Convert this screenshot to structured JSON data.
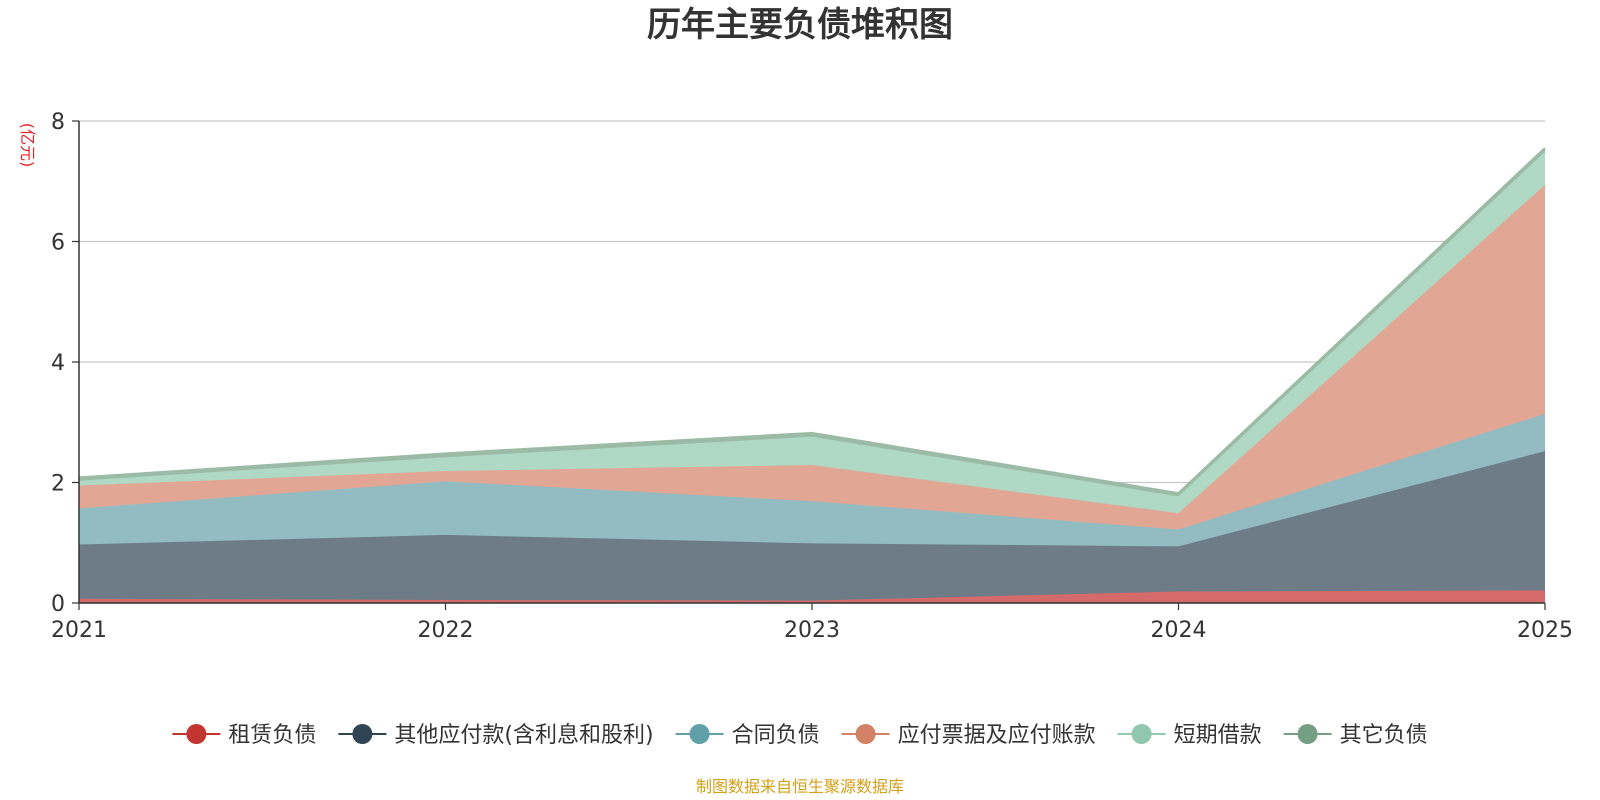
{
  "chart_data": {
    "type": "area",
    "stacked": true,
    "title": "历年主要负债堆积图",
    "unit": "(亿元)",
    "source": "制图数据来自恒生聚源数据库",
    "x": [
      "2021",
      "2022",
      "2023",
      "2024",
      "2025"
    ],
    "ylim": [
      0,
      8
    ],
    "yticks": [
      0,
      2,
      4,
      6,
      8
    ],
    "grid": true,
    "legend_position": "bottom",
    "series": [
      {
        "name": "租赁负债",
        "color": "#c23531",
        "fill": "#d46a6a",
        "values": [
          0.07,
          0.05,
          0.04,
          0.19,
          0.21
        ]
      },
      {
        "name": "其他应付款(含利息和股利)",
        "color": "#2f4554",
        "fill": "#6e7c88",
        "values": [
          0.9,
          1.08,
          0.95,
          0.75,
          2.31
        ]
      },
      {
        "name": "合同负债",
        "color": "#61a0a8",
        "fill": "#92bcc2",
        "values": [
          0.6,
          0.89,
          0.7,
          0.28,
          0.62
        ]
      },
      {
        "name": "应付票据及应付账款",
        "color": "#d48265",
        "fill": "#e2a794",
        "values": [
          0.38,
          0.17,
          0.6,
          0.27,
          3.8
        ]
      },
      {
        "name": "短期借款",
        "color": "#91c7ae",
        "fill": "#afd9c5",
        "values": [
          0.08,
          0.23,
          0.47,
          0.28,
          0.55
        ]
      },
      {
        "name": "其它负债",
        "color": "#749f83",
        "fill": "#9cbba6",
        "values": [
          0.05,
          0.06,
          0.06,
          0.05,
          0.06
        ]
      }
    ]
  }
}
